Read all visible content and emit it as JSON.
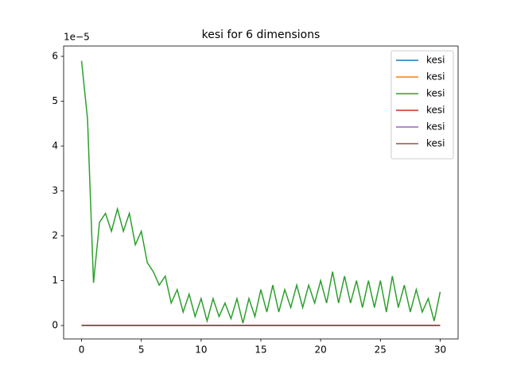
{
  "chart_data": {
    "type": "line",
    "title": "kesi for 6 dimensions",
    "y_offset_label": "1e−5",
    "x": [
      0,
      0.5,
      1,
      1.5,
      2,
      2.5,
      3,
      3.5,
      4,
      4.5,
      5,
      5.5,
      6,
      6.5,
      7,
      7.5,
      8,
      8.5,
      9,
      9.5,
      10,
      10.5,
      11,
      11.5,
      12,
      12.5,
      13,
      13.5,
      14,
      14.5,
      15,
      15.5,
      16,
      16.5,
      17,
      17.5,
      18,
      18.5,
      19,
      19.5,
      20,
      20.5,
      21,
      21.5,
      22,
      22.5,
      23,
      23.5,
      24,
      24.5,
      25,
      25.5,
      26,
      26.5,
      27,
      27.5,
      28,
      28.5,
      29,
      29.5,
      30
    ],
    "series": [
      {
        "name": "kesi",
        "color": "#1f77b4",
        "values": [
          0,
          0,
          0,
          0,
          0,
          0,
          0,
          0,
          0,
          0,
          0,
          0,
          0,
          0,
          0,
          0,
          0,
          0,
          0,
          0,
          0,
          0,
          0,
          0,
          0,
          0,
          0,
          0,
          0,
          0,
          0,
          0,
          0,
          0,
          0,
          0,
          0,
          0,
          0,
          0,
          0,
          0,
          0,
          0,
          0,
          0,
          0,
          0,
          0,
          0,
          0,
          0,
          0,
          0,
          0,
          0,
          0,
          0,
          0,
          0,
          0
        ]
      },
      {
        "name": "kesi",
        "color": "#ff7f0e",
        "values": [
          0,
          0,
          0,
          0,
          0,
          0,
          0,
          0,
          0,
          0,
          0,
          0,
          0,
          0,
          0,
          0,
          0,
          0,
          0,
          0,
          0,
          0,
          0,
          0,
          0,
          0,
          0,
          0,
          0,
          0,
          0,
          0,
          0,
          0,
          0,
          0,
          0,
          0,
          0,
          0,
          0,
          0,
          0,
          0,
          0,
          0,
          0,
          0,
          0,
          0,
          0,
          0,
          0,
          0,
          0,
          0,
          0,
          0,
          0,
          0,
          0
        ]
      },
      {
        "name": "kesi",
        "color": "#2ca02c",
        "values": [
          5.9,
          4.6,
          0.95,
          2.3,
          2.5,
          2.1,
          2.6,
          2.1,
          2.5,
          1.8,
          2.1,
          1.4,
          1.2,
          0.9,
          1.1,
          0.5,
          0.8,
          0.3,
          0.7,
          0.2,
          0.6,
          0.1,
          0.6,
          0.2,
          0.5,
          0.15,
          0.6,
          0.05,
          0.6,
          0.2,
          0.8,
          0.3,
          0.9,
          0.3,
          0.8,
          0.4,
          0.9,
          0.4,
          0.9,
          0.5,
          1.0,
          0.5,
          1.2,
          0.5,
          1.1,
          0.5,
          1.0,
          0.4,
          1.0,
          0.4,
          1.0,
          0.3,
          1.1,
          0.4,
          0.9,
          0.3,
          0.8,
          0.3,
          0.6,
          0.1,
          0.75
        ]
      },
      {
        "name": "kesi",
        "color": "#d62728",
        "values": [
          0,
          0,
          0,
          0,
          0,
          0,
          0,
          0,
          0,
          0,
          0,
          0,
          0,
          0,
          0,
          0,
          0,
          0,
          0,
          0,
          0,
          0,
          0,
          0,
          0,
          0,
          0,
          0,
          0,
          0,
          0,
          0,
          0,
          0,
          0,
          0,
          0,
          0,
          0,
          0,
          0,
          0,
          0,
          0,
          0,
          0,
          0,
          0,
          0,
          0,
          0,
          0,
          0,
          0,
          0,
          0,
          0,
          0,
          0,
          0,
          0
        ]
      },
      {
        "name": "kesi",
        "color": "#9467bd",
        "values": [
          0,
          0,
          0,
          0,
          0,
          0,
          0,
          0,
          0,
          0,
          0,
          0,
          0,
          0,
          0,
          0,
          0,
          0,
          0,
          0,
          0,
          0,
          0,
          0,
          0,
          0,
          0,
          0,
          0,
          0,
          0,
          0,
          0,
          0,
          0,
          0,
          0,
          0,
          0,
          0,
          0,
          0,
          0,
          0,
          0,
          0,
          0,
          0,
          0,
          0,
          0,
          0,
          0,
          0,
          0,
          0,
          0,
          0,
          0,
          0,
          0
        ]
      },
      {
        "name": "kesi",
        "color": "#8c564b",
        "values": [
          0,
          0,
          0,
          0,
          0,
          0,
          0,
          0,
          0,
          0,
          0,
          0,
          0,
          0,
          0,
          0,
          0,
          0,
          0,
          0,
          0,
          0,
          0,
          0,
          0,
          0,
          0,
          0,
          0,
          0,
          0,
          0,
          0,
          0,
          0,
          0,
          0,
          0,
          0,
          0,
          0,
          0,
          0,
          0,
          0,
          0,
          0,
          0,
          0,
          0,
          0,
          0,
          0,
          0,
          0,
          0,
          0,
          0,
          0,
          0,
          0
        ]
      }
    ],
    "xlim": [
      -1.5,
      31.5
    ],
    "xticks": [
      0,
      5,
      10,
      15,
      20,
      25,
      30
    ],
    "ylim": [
      -0.3,
      6.23
    ],
    "yticks": [
      0,
      1,
      2,
      3,
      4,
      5,
      6
    ],
    "grid": false,
    "legend": "upper right"
  }
}
